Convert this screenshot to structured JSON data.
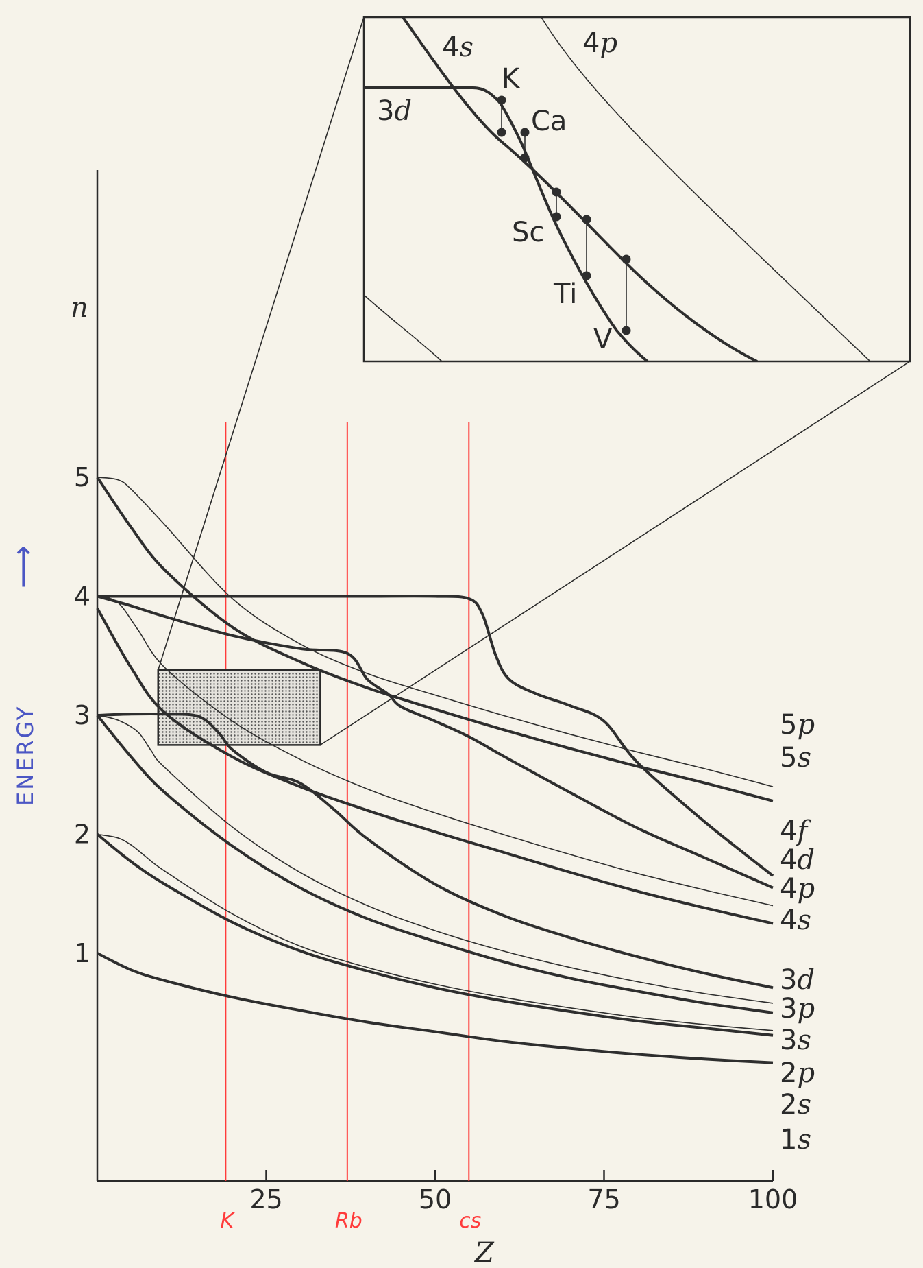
{
  "chart_data": {
    "type": "line",
    "title": "",
    "xlabel": "Z",
    "ylabel": "n",
    "side_label": "ENERGY",
    "arrow_glyph": "⟶",
    "xlim": [
      0,
      100
    ],
    "x_ticks": [
      "25",
      "50",
      "75",
      "100"
    ],
    "y_ticks": [
      "1",
      "2",
      "3",
      "4",
      "5"
    ],
    "grid": false,
    "series": [
      {
        "name": "1s",
        "weight": "thick",
        "x": [
          0,
          5,
          10,
          20,
          30,
          40,
          50,
          60,
          70,
          80,
          90,
          100
        ],
        "y": [
          1.0,
          0.86,
          0.77,
          0.63,
          0.52,
          0.42,
          0.34,
          0.26,
          0.2,
          0.15,
          0.11,
          0.08
        ]
      },
      {
        "name": "2s",
        "weight": "thick",
        "x": [
          0,
          5,
          10,
          20,
          30,
          40,
          50,
          60,
          70,
          80,
          90,
          100
        ],
        "y": [
          2.0,
          1.77,
          1.58,
          1.26,
          1.02,
          0.85,
          0.71,
          0.6,
          0.51,
          0.43,
          0.37,
          0.31
        ]
      },
      {
        "name": "2p",
        "weight": "thin",
        "x": [
          0,
          3,
          5,
          7,
          10,
          20,
          30,
          40,
          50,
          60,
          70,
          80,
          90,
          100
        ],
        "y": [
          2.0,
          1.97,
          1.91,
          1.82,
          1.69,
          1.33,
          1.06,
          0.88,
          0.74,
          0.63,
          0.54,
          0.46,
          0.4,
          0.35
        ]
      },
      {
        "name": "3s",
        "weight": "thick",
        "x": [
          0,
          5,
          10,
          20,
          30,
          40,
          50,
          60,
          70,
          80,
          90,
          100
        ],
        "y": [
          3.0,
          2.65,
          2.35,
          1.9,
          1.55,
          1.29,
          1.1,
          0.93,
          0.79,
          0.68,
          0.58,
          0.5
        ]
      },
      {
        "name": "3p",
        "weight": "thin",
        "x": [
          0,
          3,
          6,
          8,
          10,
          20,
          30,
          40,
          50,
          60,
          70,
          80,
          90,
          100
        ],
        "y": [
          3.0,
          2.96,
          2.86,
          2.7,
          2.56,
          2.06,
          1.68,
          1.4,
          1.19,
          1.02,
          0.88,
          0.76,
          0.66,
          0.58
        ]
      },
      {
        "name": "3d",
        "weight": "thick",
        "x": [
          0,
          5,
          10,
          15,
          18,
          20,
          25,
          30,
          35,
          40,
          50,
          60,
          70,
          80,
          90,
          100
        ],
        "y": [
          3.0,
          3.01,
          3.01,
          2.99,
          2.85,
          2.71,
          2.52,
          2.43,
          2.21,
          1.96,
          1.58,
          1.32,
          1.13,
          0.97,
          0.83,
          0.71
        ]
      },
      {
        "name": "4s",
        "weight": "thick",
        "x": [
          0,
          5,
          10,
          20,
          30,
          40,
          50,
          60,
          70,
          80,
          90,
          100
        ],
        "y": [
          3.9,
          3.4,
          3.02,
          2.65,
          2.4,
          2.2,
          2.02,
          1.85,
          1.68,
          1.52,
          1.38,
          1.25
        ]
      },
      {
        "name": "4p",
        "weight": "thin",
        "x": [
          0,
          3,
          6,
          10,
          20,
          30,
          40,
          50,
          60,
          70,
          80,
          90,
          100
        ],
        "y": [
          4.0,
          3.95,
          3.72,
          3.4,
          2.95,
          2.63,
          2.38,
          2.18,
          2.0,
          1.83,
          1.67,
          1.53,
          1.4
        ]
      },
      {
        "name": "4d",
        "weight": "thick",
        "x": [
          0,
          5,
          10,
          20,
          30,
          37,
          40,
          43,
          45,
          50,
          55,
          60,
          70,
          80,
          90,
          100
        ],
        "y": [
          4.0,
          3.92,
          3.83,
          3.67,
          3.56,
          3.52,
          3.3,
          3.18,
          3.07,
          2.95,
          2.82,
          2.66,
          2.35,
          2.05,
          1.8,
          1.55
        ]
      },
      {
        "name": "4f",
        "weight": "thick",
        "x": [
          0,
          10,
          20,
          30,
          40,
          50,
          55,
          57,
          59,
          61,
          65,
          70,
          75,
          80,
          90,
          100
        ],
        "y": [
          4.0,
          4.0,
          4.0,
          4.0,
          4.0,
          4.0,
          3.98,
          3.85,
          3.5,
          3.3,
          3.18,
          3.08,
          2.95,
          2.6,
          2.1,
          1.65
        ]
      },
      {
        "name": "5s",
        "weight": "thick",
        "x": [
          0,
          5,
          10,
          20,
          30,
          40,
          50,
          60,
          70,
          80,
          90,
          100
        ],
        "y": [
          5.0,
          4.58,
          4.22,
          3.74,
          3.45,
          3.23,
          3.05,
          2.88,
          2.72,
          2.57,
          2.43,
          2.28
        ]
      },
      {
        "name": "5p",
        "weight": "thin",
        "x": [
          0,
          3,
          5,
          10,
          20,
          30,
          40,
          50,
          60,
          70,
          80,
          90,
          100
        ],
        "y": [
          5.0,
          4.98,
          4.9,
          4.6,
          3.98,
          3.6,
          3.35,
          3.17,
          3.0,
          2.84,
          2.69,
          2.55,
          2.4
        ]
      }
    ],
    "series_labels": [
      {
        "orbital": "5",
        "letter": "p",
        "series": "5p"
      },
      {
        "orbital": "5",
        "letter": "s",
        "series": "5s"
      },
      {
        "orbital": "4",
        "letter": "f",
        "series": "4f"
      },
      {
        "orbital": "4",
        "letter": "d",
        "series": "4d"
      },
      {
        "orbital": "4",
        "letter": "p",
        "series": "4p"
      },
      {
        "orbital": "4",
        "letter": "s",
        "series": "4s"
      },
      {
        "orbital": "3",
        "letter": "d",
        "series": "3d"
      },
      {
        "orbital": "3",
        "letter": "p",
        "series": "3p"
      },
      {
        "orbital": "3",
        "letter": "s",
        "series": "3s"
      },
      {
        "orbital": "2",
        "letter": "p",
        "series": "2p"
      },
      {
        "orbital": "2",
        "letter": "s",
        "series": "2s"
      },
      {
        "orbital": "1",
        "letter": "s",
        "series": "1s"
      }
    ],
    "annotations": [
      {
        "label": "K",
        "z": 19
      },
      {
        "label": "Rb",
        "z": 37
      },
      {
        "label": "cs",
        "z": 55
      }
    ],
    "highlight_region": {
      "z_range": [
        9,
        33
      ],
      "y_range": [
        2.75,
        3.38
      ]
    },
    "inset": {
      "curve_labels": [
        {
          "orbital": "4",
          "letter": "s"
        },
        {
          "orbital": "4",
          "letter": "p"
        },
        {
          "orbital": "3",
          "letter": "d"
        }
      ],
      "element_labels": [
        "K",
        "Ca",
        "Sc",
        "Ti",
        "V"
      ]
    }
  }
}
